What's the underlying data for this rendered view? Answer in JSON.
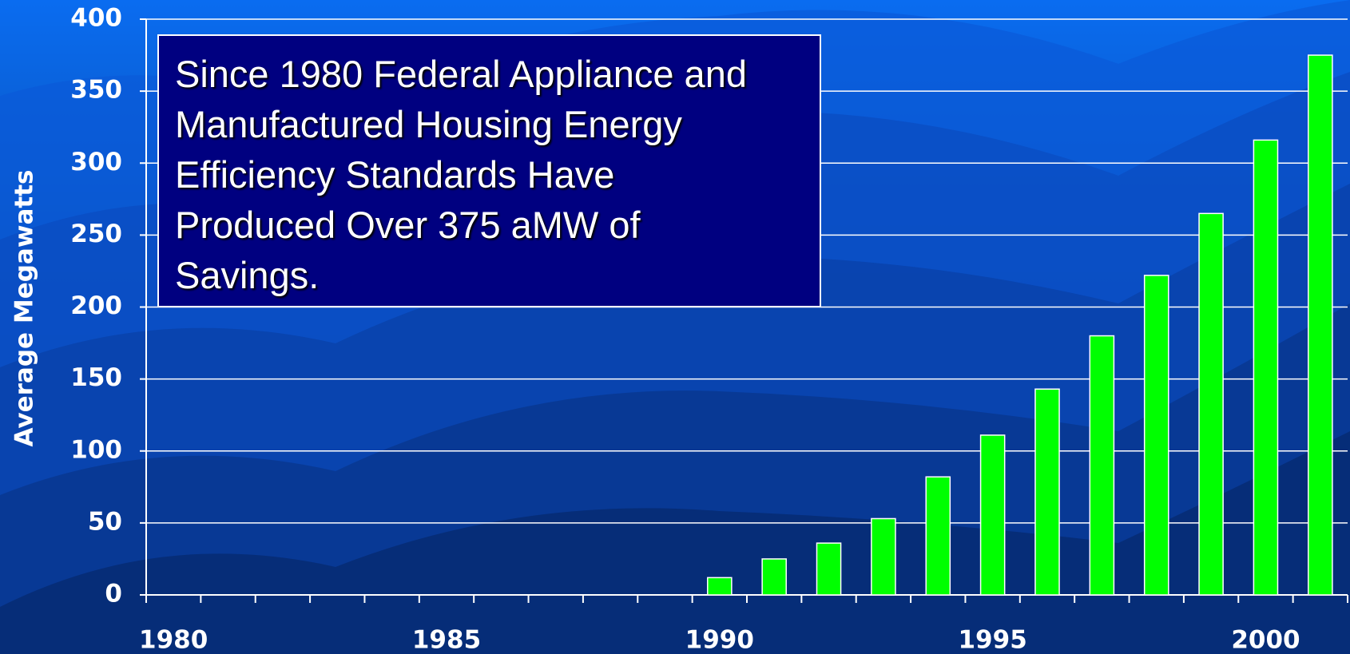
{
  "chart_data": {
    "type": "bar",
    "title": "Since 1980 Federal Appliance and Manufactured Housing Energy Efficiency Standards Have Produced Over 375 aMW of Savings.",
    "y_label": "Average Megawatts",
    "categories": [
      "1980",
      null,
      null,
      null,
      null,
      "1985",
      null,
      null,
      null,
      null,
      "1990",
      null,
      null,
      null,
      null,
      "1995",
      null,
      null,
      null,
      null,
      "2000",
      null
    ],
    "values": [
      0,
      0,
      0,
      0,
      0,
      0,
      0,
      0,
      0,
      0,
      12,
      25,
      36,
      53,
      82,
      111,
      143,
      180,
      222,
      265,
      316,
      375
    ],
    "color": "#00ff00",
    "ylim": [
      0,
      400
    ],
    "yticks": [
      0,
      50,
      100,
      150,
      200,
      250,
      300,
      350,
      400
    ],
    "grid": true
  }
}
